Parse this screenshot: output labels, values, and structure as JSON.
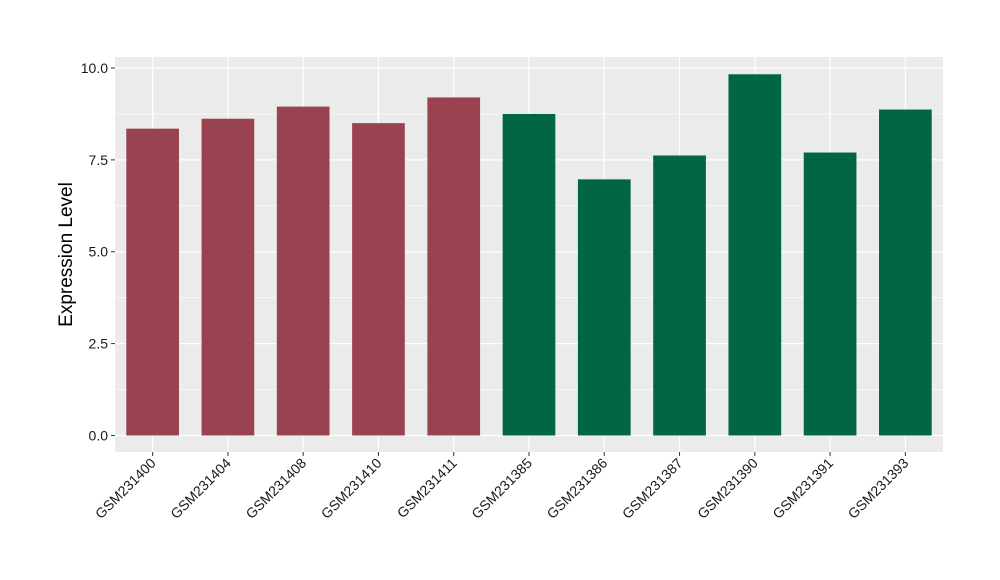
{
  "chart_data": {
    "type": "bar",
    "title": "",
    "xlabel": "",
    "ylabel": "Expression Level",
    "ylim": [
      -0.45,
      10.3
    ],
    "yticks": [
      0.0,
      2.5,
      5.0,
      7.5,
      10.0
    ],
    "ytick_labels": [
      "0.0",
      "2.5",
      "5.0",
      "7.5",
      "10.0"
    ],
    "grid": true,
    "legend": "none",
    "categories": [
      "GSM231400",
      "GSM231404",
      "GSM231408",
      "GSM231410",
      "GSM231411",
      "GSM231385",
      "GSM231386",
      "GSM231387",
      "GSM231390",
      "GSM231391",
      "GSM231393"
    ],
    "values": [
      8.35,
      8.62,
      8.95,
      8.5,
      9.2,
      8.75,
      6.97,
      7.62,
      9.83,
      7.7,
      8.87
    ],
    "bar_colors": [
      "#9a4350",
      "#9a4350",
      "#9a4350",
      "#9a4350",
      "#9a4350",
      "#006644",
      "#006644",
      "#006644",
      "#006644",
      "#006644",
      "#006644"
    ],
    "panel_background": "#ebebeb",
    "grid_color": "#ffffff"
  }
}
